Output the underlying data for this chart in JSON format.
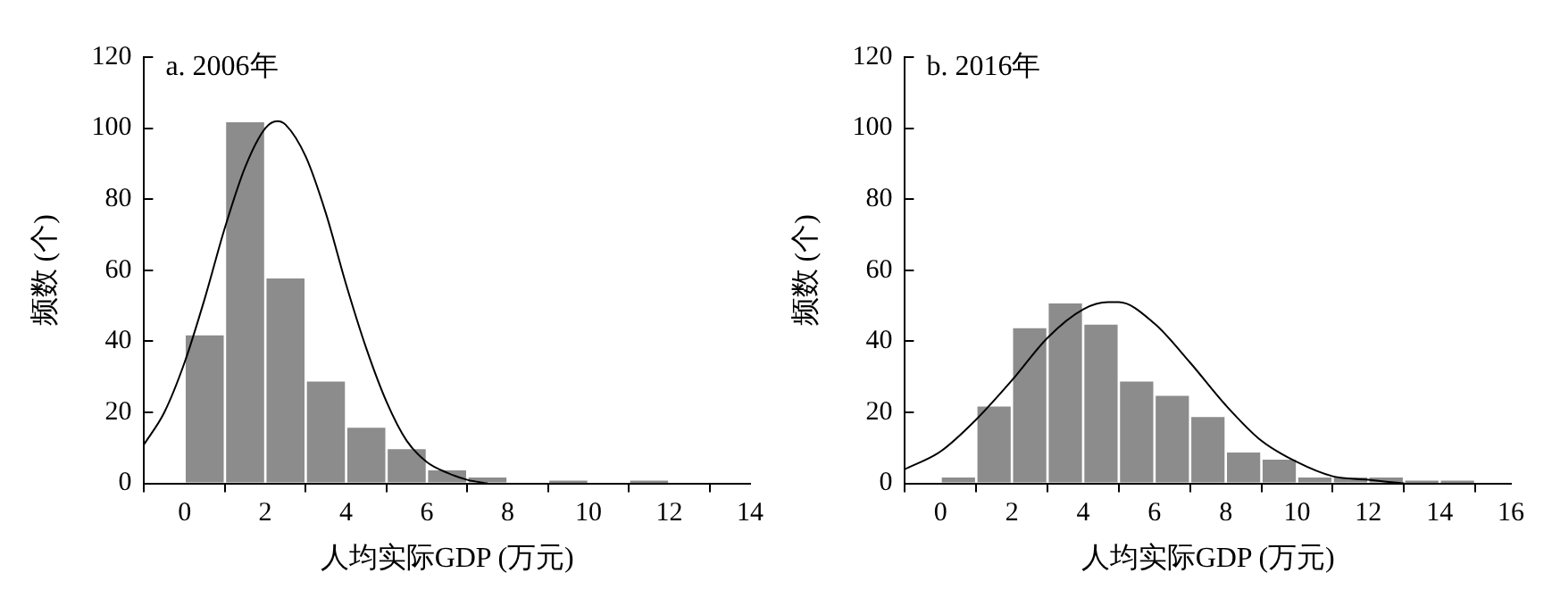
{
  "chart_data": [
    {
      "type": "histogram",
      "color": "#8c8c8c",
      "title": "a. 2006年",
      "xlabel": "人均实际GDP (万元)",
      "ylabel": "频数 (个)",
      "bins": [
        0,
        1,
        2,
        3,
        4,
        5,
        6,
        7,
        8,
        9,
        10,
        11,
        12
      ],
      "values": [
        42,
        102,
        58,
        29,
        16,
        10,
        4,
        2,
        0,
        1,
        0,
        1
      ],
      "series": [
        {
          "type": "line",
          "color": "#000000",
          "x": [
            -1,
            -0.5,
            0,
            0.5,
            1,
            1.5,
            2,
            2.3,
            2.5,
            3,
            3.5,
            4,
            4.5,
            5,
            5.5,
            6,
            6.5,
            7,
            7.5
          ],
          "values": [
            11,
            20,
            34,
            52,
            72,
            89,
            100,
            102,
            101,
            92,
            76,
            56,
            38,
            23,
            12,
            6,
            3,
            1,
            0
          ]
        }
      ],
      "xlim": [
        -1,
        14
      ],
      "ylim": [
        0,
        120
      ],
      "xticks": [
        0,
        2,
        4,
        6,
        8,
        10,
        12,
        14
      ],
      "yticks": [
        0,
        20,
        40,
        60,
        80,
        100,
        120
      ]
    },
    {
      "type": "histogram",
      "color": "#8c8c8c",
      "title": "b. 2016年",
      "xlabel": "人均实际GDP (万元)",
      "ylabel": "频数 (个)",
      "bins": [
        0,
        1,
        2,
        3,
        4,
        5,
        6,
        7,
        8,
        9,
        10,
        11,
        12,
        13,
        14,
        15
      ],
      "values": [
        2,
        22,
        44,
        51,
        45,
        29,
        25,
        19,
        9,
        7,
        2,
        2,
        2,
        1,
        1
      ],
      "series": [
        {
          "type": "line",
          "color": "#000000",
          "x": [
            -1,
            0,
            1,
            2,
            3,
            4,
            4.7,
            5,
            6,
            7,
            8,
            9,
            10,
            11,
            12,
            13
          ],
          "values": [
            4,
            9,
            18,
            29,
            41,
            49,
            51,
            51,
            45,
            34,
            22,
            12,
            6,
            2,
            1,
            0
          ]
        }
      ],
      "xlim": [
        -1,
        16
      ],
      "ylim": [
        0,
        120
      ],
      "xticks": [
        0,
        2,
        4,
        6,
        8,
        10,
        12,
        14,
        16
      ],
      "yticks": [
        0,
        20,
        40,
        60,
        80,
        100,
        120
      ]
    }
  ]
}
